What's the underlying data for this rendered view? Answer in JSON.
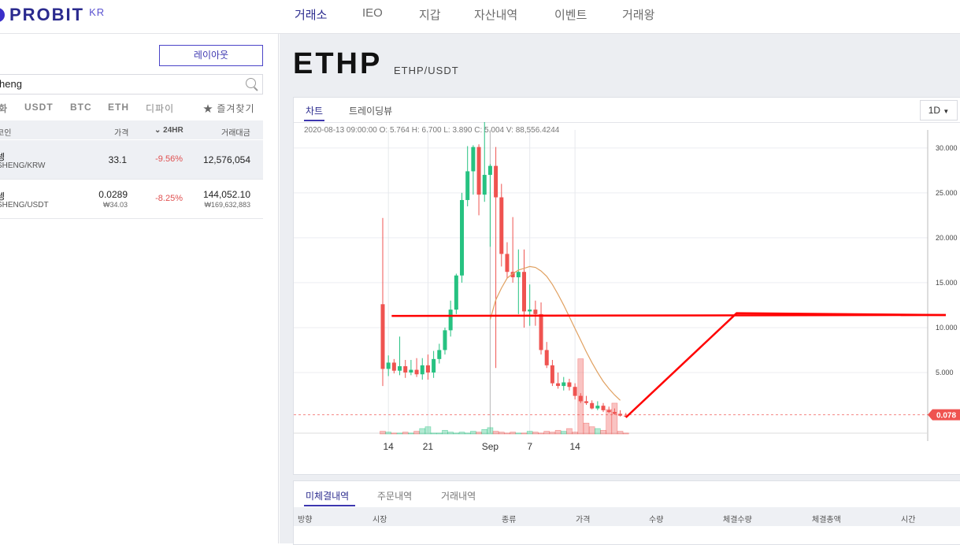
{
  "header": {
    "logo_text": "PROBIT",
    "logo_region": "KR",
    "nav": [
      "거래소",
      "IEO",
      "지갑",
      "자산내역",
      "이벤트",
      "거래왕"
    ]
  },
  "left": {
    "layout_button": "레이아웃",
    "search_value": "heng",
    "market_tabs": [
      "화",
      "USDT",
      "BTC",
      "ETH",
      "디파이",
      "★ 즐겨찾기"
    ],
    "columns": {
      "coin": "코인",
      "price": "가격",
      "change": "24HR",
      "volume": "거래대금"
    },
    "rows": [
      {
        "name": "셍",
        "pair": "SHENG/KRW",
        "price": "33.1",
        "price_krw": "",
        "change": "-9.56%",
        "volume": "12,576,054",
        "volume_krw": ""
      },
      {
        "name": "셍",
        "pair": "SHENG/USDT",
        "price": "0.0289",
        "price_krw": "₩34.03",
        "change": "-8.25%",
        "volume": "144,052.10",
        "volume_krw": "₩169,632,883"
      }
    ]
  },
  "main": {
    "coin_title": "ETHP",
    "coin_pair": "ETHP/USDT",
    "chart_tabs": [
      "차트",
      "트레이딩뷰"
    ],
    "interval": "1D",
    "ohlc_line": "2020-08-13 09:00:00   O: 5.764   H: 6.700   L: 3.890   C: 5.004   V: 88,556.4244",
    "orders_tabs": [
      "미체결내역",
      "주문내역",
      "거래내역"
    ],
    "orders_columns": [
      "방향",
      "시장",
      "종류",
      "가격",
      "수량",
      "체결수량",
      "체결총액",
      "시간"
    ]
  },
  "colors": {
    "up": "#26c281",
    "down": "#ef5350",
    "accent": "#3d37b0",
    "overlay_line": "#ff0000",
    "ma_line": "#e0a060"
  },
  "chart_data": {
    "type": "candlestick",
    "x_ticks": [
      "14",
      "21",
      "Sep",
      "7",
      "14"
    ],
    "y_ticks": [
      "30.000",
      "25.000",
      "20.000",
      "15.000",
      "10.000",
      "5.000"
    ],
    "last_price_label": "0.078",
    "ylim": [
      0,
      32
    ],
    "candles": [
      {
        "o": 12.6,
        "h": 22.2,
        "l": 3.5,
        "c": 5.4
      },
      {
        "o": 5.4,
        "h": 6.9,
        "l": 4.6,
        "c": 6.1
      },
      {
        "o": 6.1,
        "h": 6.5,
        "l": 4.9,
        "c": 5.2
      },
      {
        "o": 5.2,
        "h": 9.0,
        "l": 4.7,
        "c": 5.7
      },
      {
        "o": 5.7,
        "h": 6.4,
        "l": 4.4,
        "c": 5.0
      },
      {
        "o": 5.0,
        "h": 6.4,
        "l": 4.7,
        "c": 5.3
      },
      {
        "o": 5.3,
        "h": 6.6,
        "l": 4.5,
        "c": 4.8
      },
      {
        "o": 4.8,
        "h": 6.6,
        "l": 4.2,
        "c": 5.8
      },
      {
        "o": 5.8,
        "h": 7.0,
        "l": 4.2,
        "c": 5.0
      },
      {
        "o": 5.0,
        "h": 7.4,
        "l": 4.4,
        "c": 6.5
      },
      {
        "o": 6.5,
        "h": 8.2,
        "l": 6.0,
        "c": 7.5
      },
      {
        "o": 7.5,
        "h": 10.0,
        "l": 7.0,
        "c": 9.7
      },
      {
        "o": 9.7,
        "h": 13.0,
        "l": 9.0,
        "c": 12.0
      },
      {
        "o": 12.0,
        "h": 16.0,
        "l": 11.5,
        "c": 15.8
      },
      {
        "o": 15.8,
        "h": 25.0,
        "l": 15.0,
        "c": 24.2
      },
      {
        "o": 24.2,
        "h": 30.2,
        "l": 23.5,
        "c": 27.4
      },
      {
        "o": 27.4,
        "h": 30.3,
        "l": 24.8,
        "c": 30.1
      },
      {
        "o": 30.1,
        "h": 30.4,
        "l": 22.5,
        "c": 24.8
      },
      {
        "o": 24.8,
        "h": 33.5,
        "l": 24.0,
        "c": 27.0
      },
      {
        "o": 27.0,
        "h": 28.2,
        "l": 19.0,
        "c": 28.0
      },
      {
        "o": 28.0,
        "h": 30.1,
        "l": 5.5,
        "c": 24.5
      },
      {
        "o": 24.5,
        "h": 26.0,
        "l": 16.8,
        "c": 18.2
      },
      {
        "o": 18.2,
        "h": 19.5,
        "l": 15.5,
        "c": 16.2
      },
      {
        "o": 16.2,
        "h": 22.3,
        "l": 15.0,
        "c": 15.6
      },
      {
        "o": 15.6,
        "h": 18.7,
        "l": 11.5,
        "c": 16.2
      },
      {
        "o": 16.2,
        "h": 18.7,
        "l": 10.0,
        "c": 11.8
      },
      {
        "o": 11.8,
        "h": 14.8,
        "l": 10.2,
        "c": 12.0
      },
      {
        "o": 12.0,
        "h": 13.0,
        "l": 10.2,
        "c": 11.5
      },
      {
        "o": 11.5,
        "h": 12.8,
        "l": 7.0,
        "c": 7.5
      },
      {
        "o": 7.5,
        "h": 8.4,
        "l": 5.5,
        "c": 5.8
      },
      {
        "o": 5.8,
        "h": 6.4,
        "l": 3.5,
        "c": 3.8
      },
      {
        "o": 3.8,
        "h": 5.0,
        "l": 3.2,
        "c": 3.5
      },
      {
        "o": 3.5,
        "h": 4.5,
        "l": 3.0,
        "c": 3.9
      },
      {
        "o": 3.9,
        "h": 4.3,
        "l": 3.0,
        "c": 3.4
      },
      {
        "o": 3.4,
        "h": 3.8,
        "l": 2.0,
        "c": 2.4
      },
      {
        "o": 2.4,
        "h": 2.7,
        "l": 1.6,
        "c": 1.8
      },
      {
        "o": 1.8,
        "h": 2.4,
        "l": 1.4,
        "c": 1.6
      },
      {
        "o": 1.6,
        "h": 1.9,
        "l": 0.9,
        "c": 1.0
      },
      {
        "o": 1.0,
        "h": 1.8,
        "l": 0.8,
        "c": 1.3
      },
      {
        "o": 1.3,
        "h": 1.6,
        "l": 0.6,
        "c": 0.8
      },
      {
        "o": 0.8,
        "h": 1.2,
        "l": 0.5,
        "c": 0.6
      },
      {
        "o": 0.6,
        "h": 1.0,
        "l": 0.3,
        "c": 0.4
      },
      {
        "o": 0.4,
        "h": 0.8,
        "l": 0.1,
        "c": 0.2
      },
      {
        "o": 0.2,
        "h": 0.5,
        "l": 0.0,
        "c": 0.08
      }
    ],
    "volumes": [
      0.3,
      0.2,
      0.1,
      0.1,
      0.2,
      0.1,
      0.3,
      0.6,
      0.8,
      0.1,
      0.1,
      0.4,
      0.2,
      0.1,
      0.2,
      0.1,
      0.3,
      0.2,
      0.5,
      0.7,
      0.3,
      0.2,
      0.1,
      0.2,
      0.1,
      0.1,
      0.3,
      0.2,
      0.1,
      0.3,
      0.2,
      0.4,
      0.3,
      0.6,
      0.2,
      8.3,
      1.2,
      0.8,
      0.6,
      0.4,
      2.7,
      3.4,
      0.3,
      0.1
    ],
    "volume_up": [
      false,
      true,
      false,
      true,
      false,
      true,
      false,
      true,
      true,
      true,
      true,
      true,
      true,
      true,
      true,
      true,
      true,
      false,
      true,
      true,
      false,
      false,
      false,
      false,
      true,
      false,
      true,
      false,
      false,
      false,
      false,
      false,
      true,
      false,
      false,
      false,
      false,
      false,
      true,
      false,
      false,
      false,
      false,
      false
    ],
    "ma": [
      null,
      null,
      null,
      null,
      null,
      null,
      null,
      null,
      null,
      null,
      null,
      null,
      null,
      null,
      null,
      null,
      null,
      null,
      null,
      10.9,
      13.1,
      14.4,
      15.5,
      16.0,
      16.4,
      16.6,
      16.8,
      16.7,
      16.3,
      15.7,
      14.8,
      13.7,
      12.5,
      11.2,
      9.9,
      8.6,
      7.3,
      6.1,
      5.0,
      4.0,
      3.2,
      2.5,
      1.9,
      null
    ],
    "overlay_line": [
      [
        11.3,
        0.0
      ],
      [
        11.4,
        11.6
      ],
      [
        11.7,
        11.4
      ]
    ]
  }
}
